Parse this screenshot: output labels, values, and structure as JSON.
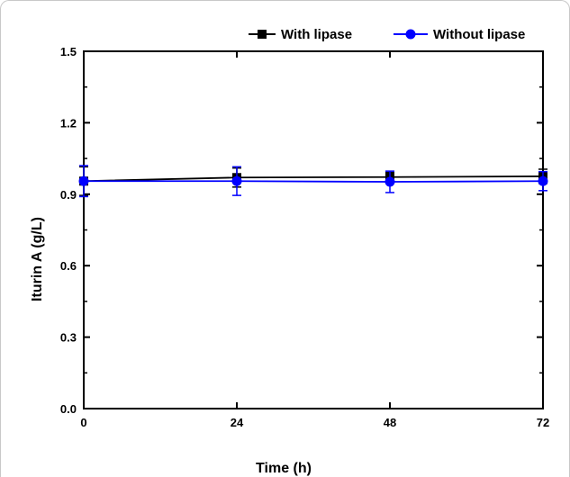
{
  "chart_data": {
    "type": "line",
    "xlabel": "Time (h)",
    "ylabel": "Iturin A (g/L)",
    "x": [
      0,
      24,
      48,
      72
    ],
    "xticks": [
      "0",
      "24",
      "48",
      "72"
    ],
    "yticks": [
      "0.0",
      "0.3",
      "0.6",
      "0.9",
      "1.2",
      "1.5"
    ],
    "xlim": [
      0,
      72
    ],
    "ylim": [
      0,
      1.5
    ],
    "grid": false,
    "legend_position": "top-right, outside plot",
    "series": [
      {
        "name": "With lipase",
        "color": "#000000",
        "marker": "square",
        "values": [
          0.955,
          0.97,
          0.972,
          0.975
        ],
        "errors": [
          0.06,
          0.04,
          0.02,
          0.03
        ]
      },
      {
        "name": "Without lipase",
        "color": "#0000ff",
        "marker": "circle",
        "values": [
          0.955,
          0.955,
          0.952,
          0.955
        ],
        "errors": [
          0.065,
          0.06,
          0.045,
          0.04
        ]
      }
    ]
  }
}
